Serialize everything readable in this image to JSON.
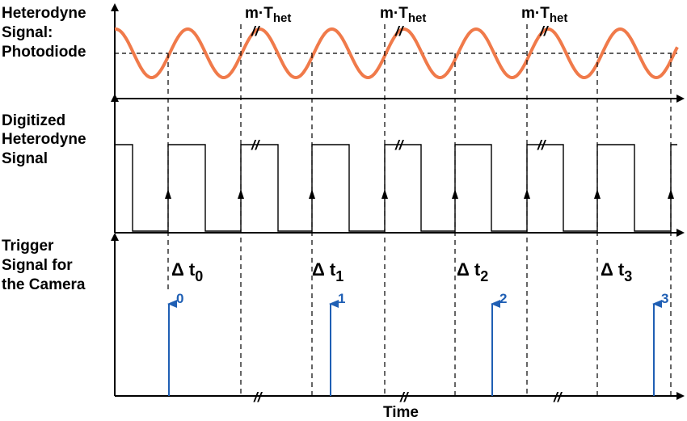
{
  "rows": {
    "photodiode": [
      "Heterodyne",
      "Signal:",
      "Photodiode"
    ],
    "digitized": [
      "Digitized",
      "Heterodyne",
      "Signal"
    ],
    "trigger": [
      "Trigger",
      "Signal for",
      "the Camera"
    ]
  },
  "period_labels": [
    {
      "prefix": "m·T",
      "sub": "het"
    },
    {
      "prefix": "m·T",
      "sub": "het"
    },
    {
      "prefix": "m·T",
      "sub": "het"
    }
  ],
  "break_mark": "//",
  "delta_labels": [
    {
      "symbol": "Δ t",
      "sub": "0"
    },
    {
      "symbol": "Δ t",
      "sub": "1"
    },
    {
      "symbol": "Δ t",
      "sub": "2"
    },
    {
      "symbol": "Δ t",
      "sub": "3"
    }
  ],
  "trigger_numbers": [
    "0",
    "1",
    "2",
    "3"
  ],
  "x_axis_label": "Time",
  "colors": {
    "sine": "#f07a4a",
    "trigger": "#1f5fb4",
    "ink": "#000000"
  }
}
